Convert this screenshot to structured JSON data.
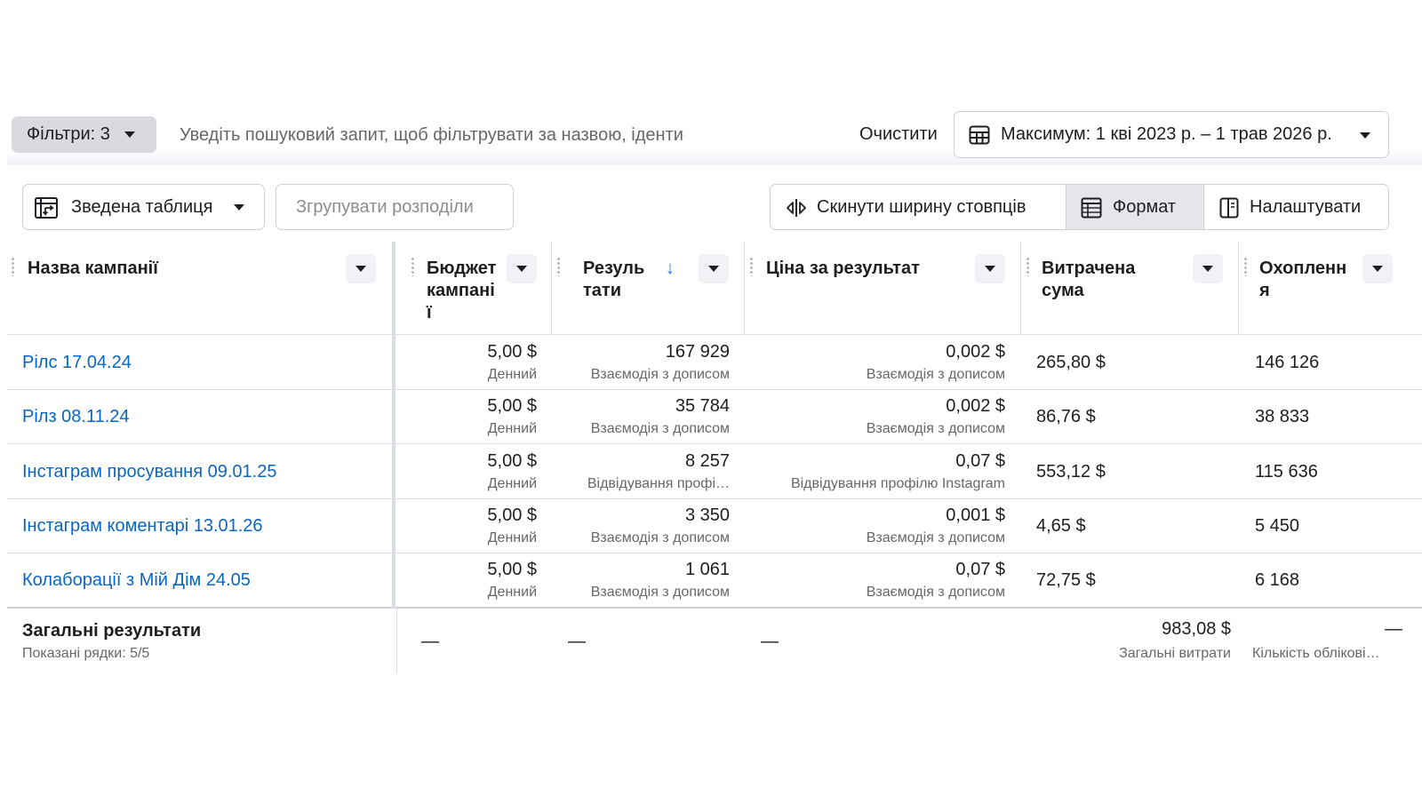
{
  "filters": {
    "label": "Фільтри: 3",
    "search_placeholder": "Уведіть пошуковий запит, щоб фільтрувати за назвою, ідентифікатором або показником",
    "clear_label": "Очистити",
    "date_range": "Максимум: 1 кві 2023 р. – 1 трав 2026 р."
  },
  "toolbar": {
    "pivot_label": "Зведена таблиця",
    "group_label": "Згрупувати розподіли",
    "reset_width_label": "Скинути ширину стовпців",
    "format_label": "Формат",
    "customize_label": "Налаштувати"
  },
  "table": {
    "columns": [
      {
        "l1": "Назва кампанії",
        "l2": "",
        "l3": ""
      },
      {
        "l1": "Бюджет",
        "l2": "кампані",
        "l3": "ї"
      },
      {
        "l1": "Резуль",
        "l2": "тати",
        "l3": ""
      },
      {
        "l1": "Ціна за результат",
        "l2": "",
        "l3": ""
      },
      {
        "l1": "Витрачена",
        "l2": "сума",
        "l3": ""
      },
      {
        "l1": "Охопленн",
        "l2": "я",
        "l3": ""
      }
    ],
    "rows": [
      {
        "name": "Рілс 17.04.24",
        "budget": "5,00 $",
        "budget_type": "Денний",
        "results": "167 929",
        "results_type": "Взаємодія з дописом",
        "cost": "0,002 $",
        "cost_type": "Взаємодія з дописом",
        "spent": "265,80 $",
        "reach": "146 126"
      },
      {
        "name": "Рілз 08.11.24",
        "budget": "5,00 $",
        "budget_type": "Денний",
        "results": "35 784",
        "results_type": "Взаємодія з дописом",
        "cost": "0,002 $",
        "cost_type": "Взаємодія з дописом",
        "spent": "86,76 $",
        "reach": "38 833"
      },
      {
        "name": "Інстаграм просування 09.01.25",
        "budget": "5,00 $",
        "budget_type": "Денний",
        "results": "8 257",
        "results_type": "Відвідування профі…",
        "cost": "0,07 $",
        "cost_type": "Відвідування профілю Instagram",
        "spent": "553,12 $",
        "reach": "115 636"
      },
      {
        "name": "Інстаграм коментарі 13.01.26",
        "budget": "5,00 $",
        "budget_type": "Денний",
        "results": "3 350",
        "results_type": "Взаємодія з дописом",
        "cost": "0,001 $",
        "cost_type": "Взаємодія з дописом",
        "spent": "4,65 $",
        "reach": "5 450"
      },
      {
        "name": "Колаборації з Мій Дім 24.05",
        "budget": "5,00 $",
        "budget_type": "Денний",
        "results": "1 061",
        "results_type": "Взаємодія з дописом",
        "cost": "0,07 $",
        "cost_type": "Взаємодія з дописом",
        "spent": "72,75 $",
        "reach": "6 168"
      }
    ],
    "totals": {
      "label": "Загальні результати",
      "rows_shown": "Показані рядки: 5/5",
      "budget": "—",
      "results": "—",
      "cost": "—",
      "spent": "983,08 $",
      "spent_label": "Загальні витрати",
      "reach": "—",
      "reach_label": "Кількість облікові…"
    }
  }
}
